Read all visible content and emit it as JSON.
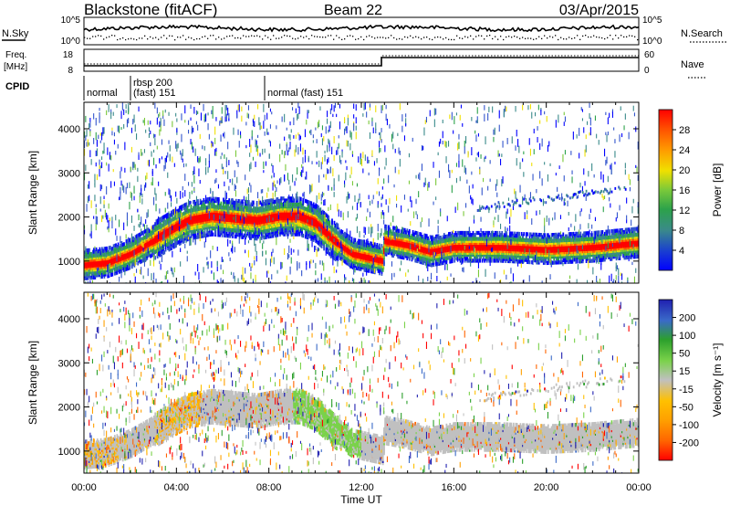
{
  "header": {
    "title": "Blackstone (fitACF)",
    "beam": "Beam 22",
    "date": "03/Apr/2015"
  },
  "top_panels": {
    "nsky_label": "N.Sky",
    "nsearch_label": "N.Search",
    "freq_label_line1": "Freq.",
    "freq_label_line2": "[MHz]",
    "nave_label": "Nave",
    "cpid_label": "CPID",
    "nsky_ticks": [
      "10^5",
      "10^0"
    ],
    "freq_ticks": [
      "18",
      "8"
    ],
    "nave_ticks": [
      "60",
      "0"
    ],
    "cpid_segments": [
      {
        "label": "normal",
        "start_h": 0.0
      },
      {
        "label": "rbsp 200",
        "label2": "(fast) 151",
        "start_h": 1.6
      },
      {
        "label": "normal (fast)  151",
        "start_h": 7.0
      }
    ]
  },
  "time_axis": {
    "label": "Time UT",
    "ticks": [
      "00:00",
      "04:00",
      "08:00",
      "12:00",
      "16:00",
      "20:00",
      "00:00"
    ]
  },
  "chart_data": [
    {
      "type": "heatmap",
      "panel": "power",
      "xlabel": "Time UT",
      "ylabel": "Slant Range [km]",
      "xlim_hours": [
        0,
        24
      ],
      "ylim_km": [
        500,
        4600
      ],
      "yticks": [
        "1000",
        "2000",
        "3000",
        "4000"
      ],
      "colorbar": {
        "label": "Power [dB]",
        "ticks": [
          "28",
          "24",
          "20",
          "16",
          "12",
          "8",
          "4"
        ],
        "colors": [
          "#0000ff",
          "#3355cc",
          "#3a8a8a",
          "#2ca24a",
          "#7ac93a",
          "#f0e000",
          "#ff9a00",
          "#ff5000",
          "#ff0000"
        ]
      },
      "echo_band_center_km": [
        [
          0.0,
          950
        ],
        [
          1.0,
          1000
        ],
        [
          2.0,
          1200
        ],
        [
          3.0,
          1500
        ],
        [
          3.8,
          1750
        ],
        [
          4.5,
          1950
        ],
        [
          5.5,
          2050
        ],
        [
          6.5,
          2000
        ],
        [
          7.5,
          1950
        ],
        [
          8.5,
          2050
        ],
        [
          9.3,
          2050
        ],
        [
          10.0,
          1900
        ],
        [
          10.8,
          1500
        ],
        [
          11.6,
          1200
        ],
        [
          12.9,
          1050
        ],
        [
          13.0,
          1500
        ],
        [
          14.0,
          1400
        ],
        [
          15.0,
          1250
        ],
        [
          16.0,
          1350
        ],
        [
          18.0,
          1350
        ],
        [
          20.0,
          1300
        ],
        [
          22.0,
          1350
        ],
        [
          24.0,
          1450
        ]
      ]
    },
    {
      "type": "heatmap",
      "panel": "velocity",
      "xlabel": "Time UT",
      "ylabel": "Slant Range [km]",
      "xlim_hours": [
        0,
        24
      ],
      "ylim_km": [
        500,
        4600
      ],
      "yticks": [
        "1000",
        "2000",
        "3000",
        "4000"
      ],
      "colorbar": {
        "label": "Velocity [m s⁻¹]",
        "ticks": [
          "200",
          "100",
          "50",
          "15",
          "-15",
          "-50",
          "-100",
          "-200"
        ],
        "colors": [
          "#ff0000",
          "#ff6400",
          "#ffa000",
          "#ffc000",
          "#c0c0c0",
          "#7ad24a",
          "#2ca02c",
          "#3a6ac8",
          "#2020b0"
        ]
      }
    }
  ]
}
